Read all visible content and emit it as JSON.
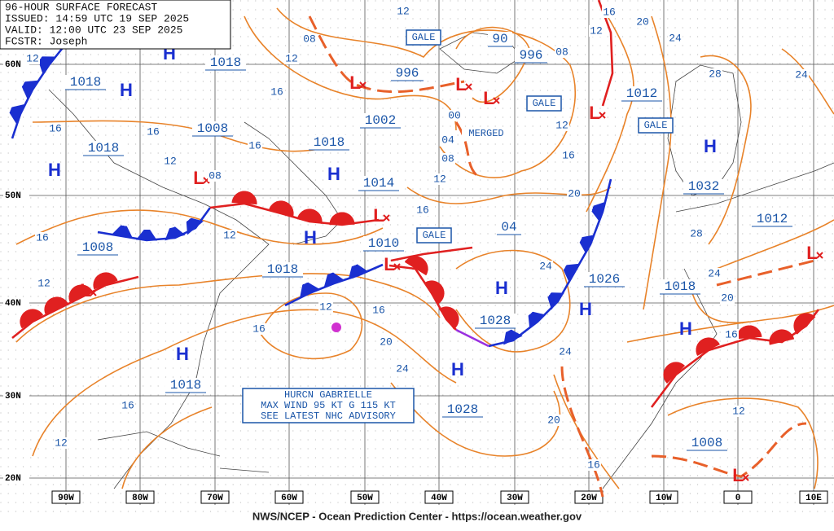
{
  "header": {
    "lines": [
      "96-HOUR SURFACE FORECAST",
      "ISSUED: 14:59 UTC 19 SEP 2025",
      "VALID: 12:00 UTC 23 SEP 2025",
      "FCSTR: Joseph"
    ]
  },
  "footer": "NWS/NCEP - Ocean Prediction Center - https://ocean.weather.gov",
  "latitude_labels": [
    "60N",
    "50N",
    "40N",
    "30N",
    "20N"
  ],
  "longitude_labels": [
    "90W",
    "80W",
    "70W",
    "60W",
    "50W",
    "40W",
    "30W",
    "20W",
    "10W",
    "0",
    "10E"
  ],
  "center_pressures": [
    "1018",
    "1018",
    "1008",
    "1018",
    "1002",
    "1018",
    "1014",
    "1010",
    "1018",
    "1008",
    "996",
    "90",
    "996",
    "1012",
    "1032",
    "1012",
    "1026",
    "1018",
    "1028",
    "04",
    "1028",
    "1018",
    "1008"
  ],
  "high_symbols": [
    "H",
    "H",
    "H",
    "H",
    "H",
    "H",
    "H",
    "H",
    "H",
    "H",
    "H"
  ],
  "low_symbols": [
    "L",
    "L",
    "L",
    "L",
    "L",
    "L",
    "L",
    "L",
    "L",
    "L"
  ],
  "isobar_labels": [
    "12",
    "08",
    "12",
    "16",
    "12",
    "16",
    "16",
    "16",
    "12",
    "08",
    "16",
    "12",
    "12",
    "16",
    "12",
    "16",
    "20",
    "24",
    "16",
    "12",
    "00",
    "04",
    "08",
    "12",
    "16",
    "08",
    "12",
    "16",
    "20",
    "24",
    "28",
    "24",
    "12",
    "16",
    "20",
    "24",
    "28",
    "24",
    "20",
    "16",
    "24",
    "20",
    "16",
    "12"
  ],
  "warnings": [
    "GALE",
    "GALE",
    "GALE",
    "GALE"
  ],
  "merged_note": "MERGED",
  "hurricane_box": [
    "HURCN GABRIELLE",
    "MAX WIND 95 KT G 115 KT",
    "SEE LATEST NHC ADVISORY"
  ]
}
